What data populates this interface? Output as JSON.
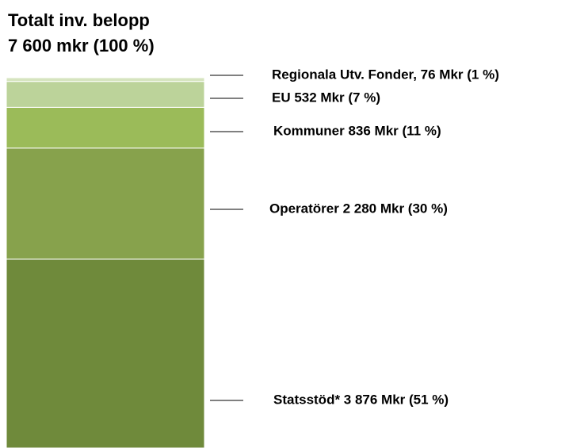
{
  "chart_data": {
    "type": "bar",
    "stacked": true,
    "title": [
      "Totalt inv. belopp",
      "7 600 mkr (100 %)"
    ],
    "values": [
      3876,
      2280,
      836,
      532,
      76
    ],
    "value_labels": [
      "Statsstöd* 3 876 Mkr (51 %)",
      "Operatörer 2 280 Mkr (30 %)",
      "Kommuner 836 Mkr (11 %)",
      "EU 532 Mkr (7 %)",
      "Regionala Utv. Fonder, 76 Mkr (1 %)"
    ],
    "colors": [
      "#6f8a3b",
      "#87a24c",
      "#9bbb59",
      "#bcd39a",
      "#d6e4bf"
    ]
  }
}
